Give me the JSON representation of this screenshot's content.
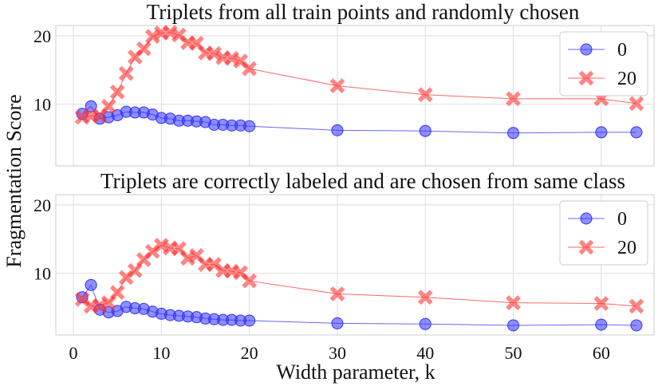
{
  "chart_data": {
    "type": "line",
    "ylabel": "Fragmentation Score",
    "xlabel": "Width parameter, k",
    "xlim": [
      -2,
      66
    ],
    "ylim": [
      1,
      21.5
    ],
    "xticks": [
      0,
      10,
      20,
      30,
      40,
      50,
      60
    ],
    "yticks": [
      10,
      20
    ],
    "grid": true,
    "legend_position": "top-right",
    "colors": {
      "series_0": "#3333ff",
      "series_20": "#ff3333"
    },
    "panels": [
      {
        "title": "Triplets from all train points and randomly chosen",
        "x": [
          1,
          2,
          3,
          4,
          5,
          6,
          7,
          8,
          9,
          10,
          11,
          12,
          13,
          14,
          15,
          16,
          17,
          18,
          19,
          20,
          30,
          40,
          50,
          60,
          64
        ],
        "series": [
          {
            "name": "0",
            "marker": "circle",
            "values": [
              8.6,
              9.7,
              7.9,
              8.1,
              8.4,
              8.9,
              8.8,
              8.8,
              8.5,
              8.0,
              7.9,
              7.6,
              7.6,
              7.5,
              7.4,
              7.0,
              7.0,
              6.9,
              6.9,
              6.8,
              6.2,
              6.1,
              5.8,
              5.9,
              5.9
            ]
          },
          {
            "name": "20",
            "marker": "x",
            "values": [
              8.1,
              8.3,
              8.3,
              9.7,
              11.8,
              14.5,
              16.9,
              18.1,
              19.9,
              20.4,
              20.5,
              20.1,
              19.0,
              18.9,
              17.5,
              17.4,
              16.8,
              16.7,
              16.3,
              15.2,
              12.7,
              11.4,
              10.8,
              10.8,
              10.1
            ]
          }
        ]
      },
      {
        "title": "Triplets are correctly labeled and are chosen from same class",
        "x": [
          1,
          2,
          3,
          4,
          5,
          6,
          7,
          8,
          9,
          10,
          11,
          12,
          13,
          14,
          15,
          16,
          17,
          18,
          19,
          20,
          30,
          40,
          50,
          60,
          64
        ],
        "series": [
          {
            "name": "0",
            "marker": "circle",
            "values": [
              6.5,
              8.3,
              4.7,
              4.3,
              4.5,
              5.1,
              4.9,
              4.8,
              4.4,
              4.1,
              3.9,
              3.8,
              3.7,
              3.6,
              3.4,
              3.3,
              3.2,
              3.2,
              3.1,
              3.1,
              2.7,
              2.6,
              2.4,
              2.5,
              2.4
            ]
          },
          {
            "name": "20",
            "marker": "x",
            "values": [
              6.2,
              5.2,
              5.3,
              5.7,
              7.2,
              9.4,
              10.4,
              12.0,
              13.2,
              14.1,
              13.7,
              13.6,
              12.2,
              12.6,
              11.3,
              11.3,
              10.4,
              10.3,
              10.1,
              8.9,
              7.0,
              6.5,
              5.7,
              5.6,
              5.2
            ]
          }
        ]
      }
    ]
  }
}
